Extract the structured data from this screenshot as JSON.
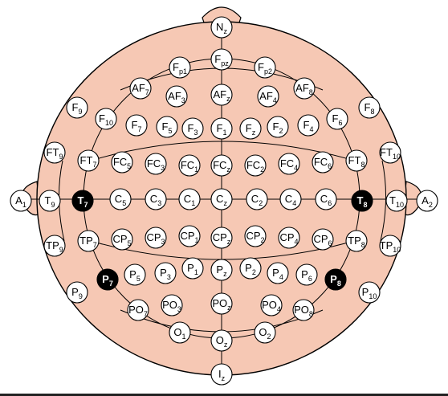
{
  "diagram": {
    "colors": {
      "head_fill": "#f6c8b4",
      "outline": "#000000",
      "electrode_fill": "#ffffff",
      "highlight_fill": "#000000",
      "highlight_text": "#ffffff",
      "ear_fill": "#f6c8b4"
    },
    "electrodes": [
      {
        "base": "N",
        "sub": "z"
      },
      {
        "base": "F",
        "sub": "pz"
      },
      {
        "base": "F",
        "sub": "p1"
      },
      {
        "base": "F",
        "sub": "p2"
      },
      {
        "base": "AF",
        "sub": "7"
      },
      {
        "base": "AF",
        "sub": "3"
      },
      {
        "base": "AF",
        "sub": "z"
      },
      {
        "base": "AF",
        "sub": "4"
      },
      {
        "base": "AF",
        "sub": "8"
      },
      {
        "base": "F",
        "sub": "9"
      },
      {
        "base": "F",
        "sub": "10"
      },
      {
        "base": "F",
        "sub": "7"
      },
      {
        "base": "F",
        "sub": "5"
      },
      {
        "base": "F",
        "sub": "3"
      },
      {
        "base": "F",
        "sub": "1"
      },
      {
        "base": "F",
        "sub": "z"
      },
      {
        "base": "F",
        "sub": "2"
      },
      {
        "base": "F",
        "sub": "4"
      },
      {
        "base": "F",
        "sub": "6"
      },
      {
        "base": "F",
        "sub": "8"
      },
      {
        "base": "FT",
        "sub": "9"
      },
      {
        "base": "FT",
        "sub": "7"
      },
      {
        "base": "FC",
        "sub": "5"
      },
      {
        "base": "FC",
        "sub": "3"
      },
      {
        "base": "FC",
        "sub": "1"
      },
      {
        "base": "FC",
        "sub": "z"
      },
      {
        "base": "FC",
        "sub": "2"
      },
      {
        "base": "FC",
        "sub": "4"
      },
      {
        "base": "FC",
        "sub": "6"
      },
      {
        "base": "FT",
        "sub": "8"
      },
      {
        "base": "FT",
        "sub": "10"
      },
      {
        "base": "A",
        "sub": "1"
      },
      {
        "base": "T",
        "sub": "9"
      },
      {
        "base": "T",
        "sub": "7",
        "highlight": true
      },
      {
        "base": "C",
        "sub": "5"
      },
      {
        "base": "C",
        "sub": "3"
      },
      {
        "base": "C",
        "sub": "1"
      },
      {
        "base": "C",
        "sub": "z"
      },
      {
        "base": "C",
        "sub": "2"
      },
      {
        "base": "C",
        "sub": "4"
      },
      {
        "base": "C",
        "sub": "6"
      },
      {
        "base": "T",
        "sub": "8",
        "highlight": true
      },
      {
        "base": "T",
        "sub": "10"
      },
      {
        "base": "A",
        "sub": "2"
      },
      {
        "base": "TP",
        "sub": "9"
      },
      {
        "base": "TP",
        "sub": "7"
      },
      {
        "base": "CP",
        "sub": "5"
      },
      {
        "base": "CP",
        "sub": "3"
      },
      {
        "base": "CP",
        "sub": "1"
      },
      {
        "base": "CP",
        "sub": "z"
      },
      {
        "base": "CP",
        "sub": "2"
      },
      {
        "base": "CP",
        "sub": "4"
      },
      {
        "base": "CP",
        "sub": "6"
      },
      {
        "base": "TP",
        "sub": "8"
      },
      {
        "base": "TP",
        "sub": "10"
      },
      {
        "base": "P",
        "sub": "9"
      },
      {
        "base": "P",
        "sub": "7",
        "highlight": true
      },
      {
        "base": "P",
        "sub": "5"
      },
      {
        "base": "P",
        "sub": "3"
      },
      {
        "base": "P",
        "sub": "1"
      },
      {
        "base": "P",
        "sub": "z"
      },
      {
        "base": "P",
        "sub": "2"
      },
      {
        "base": "P",
        "sub": "4"
      },
      {
        "base": "P",
        "sub": "6"
      },
      {
        "base": "P",
        "sub": "8",
        "highlight": true
      },
      {
        "base": "P",
        "sub": "10"
      },
      {
        "base": "PO",
        "sub": "7"
      },
      {
        "base": "PO",
        "sub": "3"
      },
      {
        "base": "PO",
        "sub": "z"
      },
      {
        "base": "PO",
        "sub": "4"
      },
      {
        "base": "PO",
        "sub": "8"
      },
      {
        "base": "O",
        "sub": "1"
      },
      {
        "base": "O",
        "sub": "z"
      },
      {
        "base": "O",
        "sub": "2"
      },
      {
        "base": "I",
        "sub": "z"
      }
    ]
  }
}
